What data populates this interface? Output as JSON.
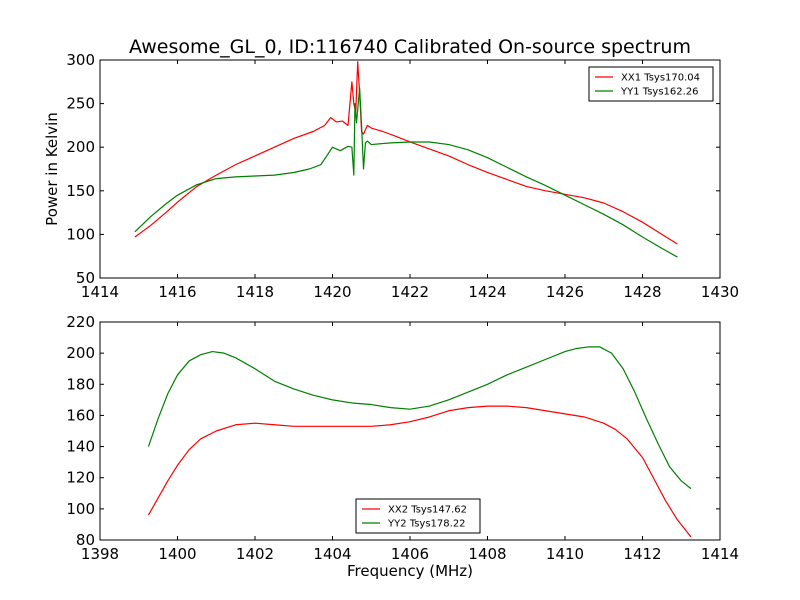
{
  "title": "Awesome_GL_0, ID:116740 Calibrated On-source spectrum",
  "chart_data": [
    {
      "type": "line",
      "title": "Awesome_GL_0, ID:116740 Calibrated On-source spectrum",
      "xlabel": "",
      "ylabel": "Power in Kelvin",
      "xlim": [
        1414,
        1430
      ],
      "ylim": [
        50,
        300
      ],
      "xticks": [
        1414,
        1416,
        1418,
        1420,
        1422,
        1424,
        1426,
        1428,
        1430
      ],
      "yticks": [
        50,
        100,
        150,
        200,
        250,
        300
      ],
      "grid": false,
      "legend_position": "top-right",
      "series": [
        {
          "name": "XX1 Tsys170.04",
          "color": "#ff0000",
          "x": [
            1414.9,
            1415.3,
            1415.7,
            1416.0,
            1416.5,
            1417.0,
            1417.5,
            1418.0,
            1418.5,
            1419.0,
            1419.5,
            1419.8,
            1419.95,
            1420.1,
            1420.25,
            1420.4,
            1420.5,
            1420.55,
            1420.6,
            1420.65,
            1420.7,
            1420.75,
            1420.8,
            1420.9,
            1421.0,
            1421.3,
            1421.6,
            1422.0,
            1422.5,
            1423.0,
            1423.5,
            1424.0,
            1424.5,
            1425.0,
            1425.5,
            1426.0,
            1426.5,
            1427.0,
            1427.5,
            1428.0,
            1428.5,
            1428.9
          ],
          "y": [
            97,
            110,
            125,
            137,
            155,
            168,
            180,
            190,
            200,
            210,
            218,
            225,
            234,
            229,
            230,
            225,
            275,
            250,
            240,
            298,
            262,
            218,
            215,
            225,
            222,
            218,
            213,
            206,
            198,
            190,
            180,
            171,
            163,
            155,
            150,
            146,
            142,
            136,
            126,
            114,
            100,
            89
          ]
        },
        {
          "name": "YY1 Tsys162.26",
          "color": "#008000",
          "x": [
            1414.9,
            1415.3,
            1415.7,
            1416.0,
            1416.5,
            1417.0,
            1417.5,
            1418.0,
            1418.5,
            1419.0,
            1419.4,
            1419.7,
            1419.85,
            1420.0,
            1420.2,
            1420.4,
            1420.5,
            1420.55,
            1420.58,
            1420.62,
            1420.7,
            1420.75,
            1420.8,
            1420.85,
            1420.9,
            1421.0,
            1421.5,
            1422.0,
            1422.5,
            1423.0,
            1423.5,
            1424.0,
            1424.5,
            1425.0,
            1425.5,
            1426.0,
            1426.5,
            1427.0,
            1427.5,
            1428.0,
            1428.5,
            1428.9
          ],
          "y": [
            103,
            120,
            135,
            145,
            157,
            164,
            166,
            167,
            168,
            171,
            175,
            180,
            190,
            200,
            196,
            201,
            200,
            168,
            250,
            228,
            268,
            225,
            175,
            205,
            207,
            203,
            205,
            206,
            206,
            203,
            197,
            188,
            177,
            166,
            156,
            145,
            134,
            123,
            111,
            97,
            84,
            74
          ]
        }
      ]
    },
    {
      "type": "line",
      "title": "",
      "xlabel": "Frequency (MHz)",
      "ylabel": "",
      "xlim": [
        1398,
        1414
      ],
      "ylim": [
        80,
        220
      ],
      "xticks": [
        1398,
        1400,
        1402,
        1404,
        1406,
        1408,
        1410,
        1412,
        1414
      ],
      "yticks": [
        80,
        100,
        120,
        140,
        160,
        180,
        200,
        220
      ],
      "grid": false,
      "legend_position": "bottom-center",
      "series": [
        {
          "name": "XX2 Tsys147.62",
          "color": "#ff0000",
          "x": [
            1399.25,
            1399.5,
            1399.75,
            1400.0,
            1400.3,
            1400.6,
            1401.0,
            1401.5,
            1402.0,
            1402.5,
            1403.0,
            1403.5,
            1404.0,
            1404.5,
            1405.0,
            1405.5,
            1406.0,
            1406.5,
            1407.0,
            1407.5,
            1408.0,
            1408.5,
            1409.0,
            1409.5,
            1410.0,
            1410.5,
            1411.0,
            1411.3,
            1411.6,
            1412.0,
            1412.3,
            1412.6,
            1412.9,
            1413.25
          ],
          "y": [
            96,
            107,
            118,
            128,
            138,
            145,
            150,
            154,
            155,
            154,
            153,
            153,
            153,
            153,
            153,
            154,
            156,
            159,
            163,
            165,
            166,
            166,
            165,
            163,
            161,
            159,
            155,
            151,
            145,
            133,
            119,
            105,
            93,
            82
          ]
        },
        {
          "name": "YY2 Tsys178.22",
          "color": "#008000",
          "x": [
            1399.25,
            1399.5,
            1399.75,
            1400.0,
            1400.3,
            1400.6,
            1400.9,
            1401.2,
            1401.5,
            1402.0,
            1402.5,
            1403.0,
            1403.5,
            1404.0,
            1404.5,
            1405.0,
            1405.5,
            1406.0,
            1406.5,
            1407.0,
            1407.5,
            1408.0,
            1408.5,
            1409.0,
            1409.5,
            1410.0,
            1410.3,
            1410.6,
            1410.9,
            1411.2,
            1411.5,
            1411.8,
            1412.1,
            1412.4,
            1412.7,
            1413.0,
            1413.25
          ],
          "y": [
            140,
            158,
            174,
            186,
            195,
            199,
            201,
            200,
            197,
            190,
            182,
            177,
            173,
            170,
            168,
            167,
            165,
            164,
            166,
            170,
            175,
            180,
            186,
            191,
            196,
            201,
            203,
            204,
            204,
            200,
            190,
            175,
            158,
            142,
            127,
            118,
            113
          ]
        }
      ]
    }
  ]
}
